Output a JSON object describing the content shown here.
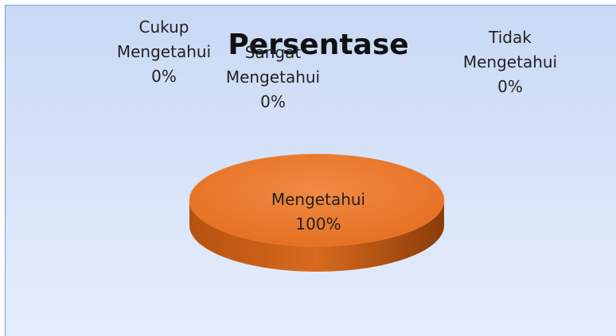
{
  "chart_data": {
    "type": "pie3d",
    "title": "Persentase",
    "categories": [
      "Sangat Mengetahui",
      "Mengetahui",
      "Cukup Mengetahui",
      "Tidak Mengetahui"
    ],
    "values": [
      0,
      100,
      0,
      0
    ],
    "value_labels": [
      "0%",
      "100%",
      "0%",
      "0%"
    ],
    "color": "#ed7d31"
  }
}
